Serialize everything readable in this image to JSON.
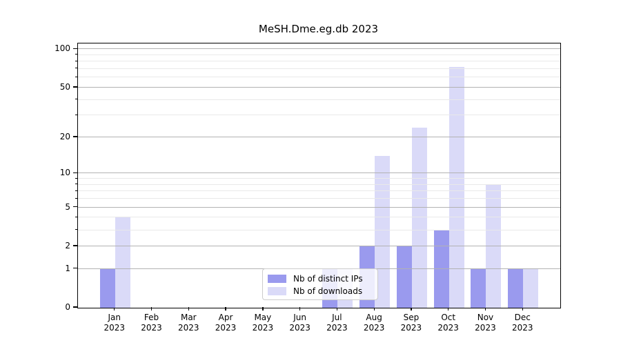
{
  "chart_data": {
    "type": "bar",
    "title": "MeSH.Dme.eg.db 2023",
    "categories": [
      "Jan",
      "Feb",
      "Mar",
      "Apr",
      "May",
      "Jun",
      "Jul",
      "Aug",
      "Sep",
      "Oct",
      "Nov",
      "Dec"
    ],
    "year_label": "2023",
    "series": [
      {
        "name": "Nb of distinct IPs",
        "color": "#9a9aee",
        "values": [
          1,
          0,
          0,
          0,
          0,
          0,
          1,
          2,
          2,
          3,
          1,
          1
        ]
      },
      {
        "name": "Nb of downloads",
        "color": "#dadaf8",
        "values": [
          4,
          0,
          0,
          0,
          0,
          0,
          1,
          14,
          24,
          73,
          8,
          1
        ]
      }
    ],
    "yscale": "log1p",
    "y_ticks": [
      0,
      1,
      2,
      5,
      10,
      20,
      50,
      100
    ],
    "y_minor_gridlines": [
      3,
      4,
      6,
      7,
      8,
      9,
      30,
      40,
      60,
      70,
      80,
      90
    ],
    "ylim": [
      0,
      111
    ],
    "grid": "horizontal",
    "grid_above_bars": true,
    "legend_position": "bottom-center"
  },
  "colors": {
    "major_grid": "#b2b2b2",
    "minor_grid": "#e9e9e9",
    "spine": "#000000",
    "background": "#ffffff",
    "text": "#000000"
  }
}
